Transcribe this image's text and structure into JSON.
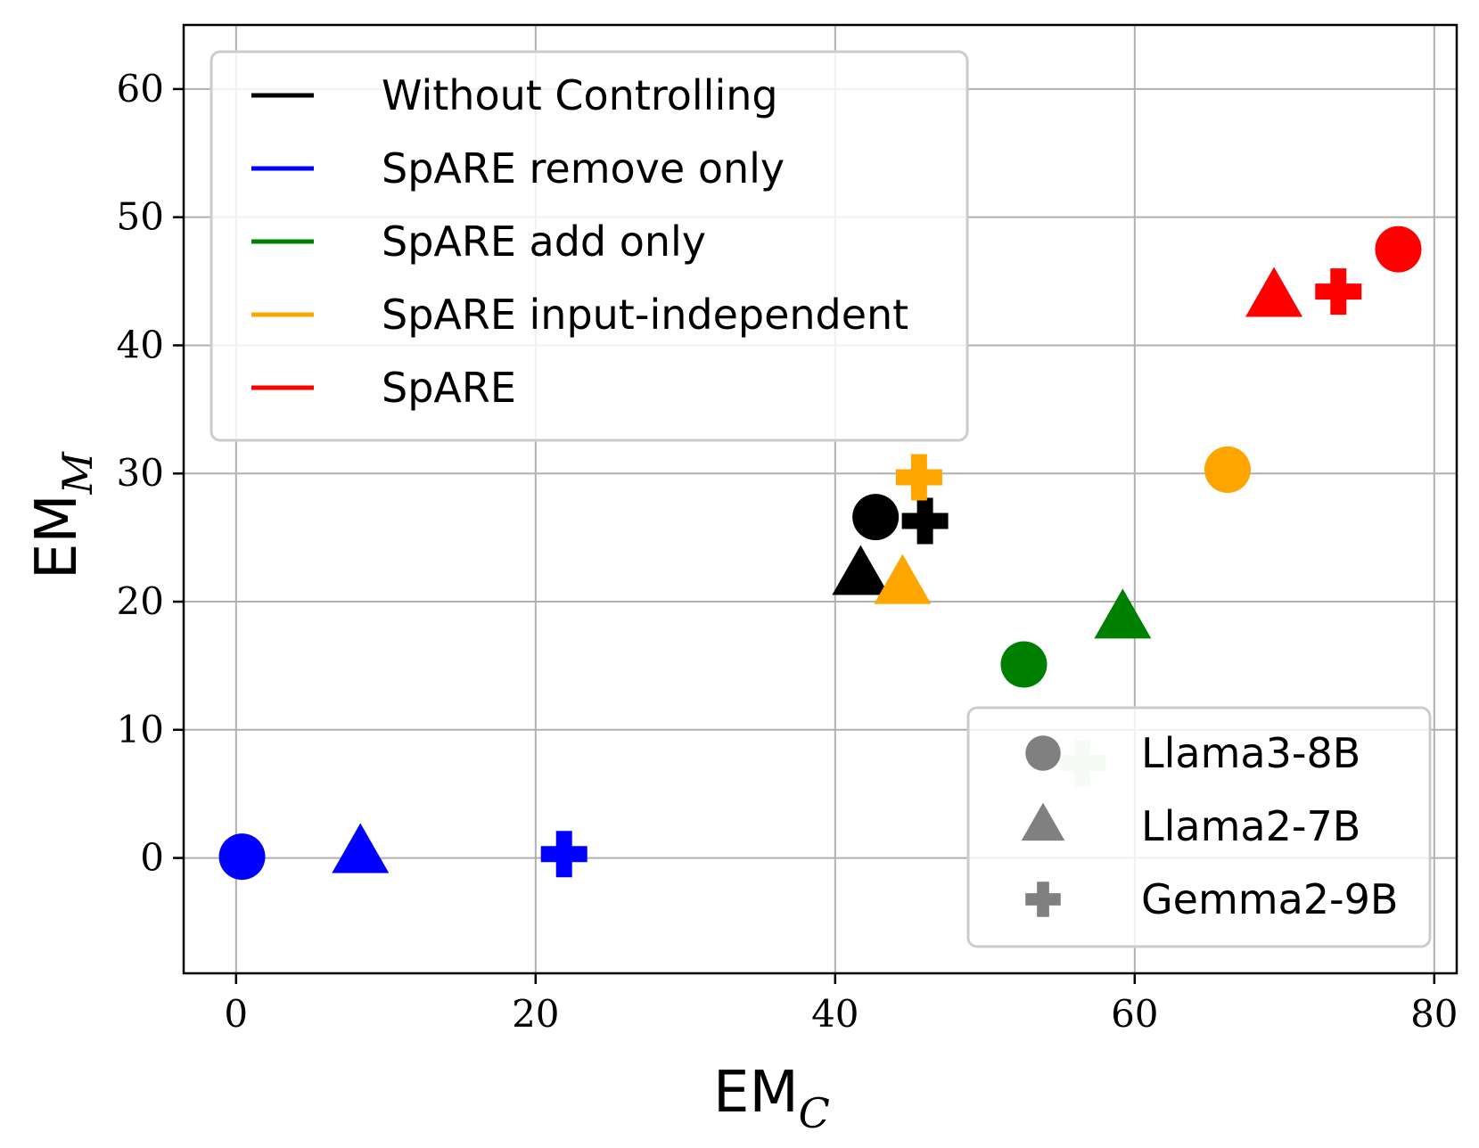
{
  "chart_data": {
    "type": "scatter",
    "xlabel": {
      "main": "EM",
      "sub": "C"
    },
    "ylabel": {
      "main": "EM",
      "sub": "M"
    },
    "xlim": [
      -3.5,
      81.5
    ],
    "ylim": [
      -9,
      65
    ],
    "xticks": [
      0,
      20,
      40,
      60,
      80
    ],
    "yticks": [
      0,
      10,
      20,
      30,
      40,
      50,
      60
    ],
    "grid": true,
    "method_legend": {
      "placement": "top-left",
      "entries": [
        {
          "label": "Without Controlling",
          "color": "#000000"
        },
        {
          "label": "SpARE remove only",
          "color": "#0000ff"
        },
        {
          "label": "SpARE add only",
          "color": "#008000"
        },
        {
          "label": "SpARE input-independent",
          "color": "#ffa500"
        },
        {
          "label": "SpARE",
          "color": "#ff0000"
        }
      ]
    },
    "model_legend": {
      "placement": "bottom-right",
      "color": "#808080",
      "entries": [
        {
          "label": "Llama3-8B",
          "marker": "circle"
        },
        {
          "label": "Llama2-7B",
          "marker": "triangle"
        },
        {
          "label": "Gemma2-9B",
          "marker": "plus"
        }
      ]
    },
    "points": [
      {
        "method": "Without Controlling",
        "model": "Llama3-8B",
        "marker": "circle",
        "color": "#000000",
        "x": 42.7,
        "y": 26.6
      },
      {
        "method": "Without Controlling",
        "model": "Llama2-7B",
        "marker": "triangle",
        "color": "#000000",
        "x": 41.7,
        "y": 22.0
      },
      {
        "method": "Without Controlling",
        "model": "Gemma2-9B",
        "marker": "plus",
        "color": "#000000",
        "x": 46.0,
        "y": 26.3
      },
      {
        "method": "SpARE remove only",
        "model": "Llama3-8B",
        "marker": "circle",
        "color": "#0000ff",
        "x": 0.4,
        "y": 0.1
      },
      {
        "method": "SpARE remove only",
        "model": "Llama2-7B",
        "marker": "triangle",
        "color": "#0000ff",
        "x": 8.3,
        "y": 0.3
      },
      {
        "method": "SpARE remove only",
        "model": "Gemma2-9B",
        "marker": "plus",
        "color": "#0000ff",
        "x": 21.9,
        "y": 0.3
      },
      {
        "method": "SpARE add only",
        "model": "Llama3-8B",
        "marker": "circle",
        "color": "#008000",
        "x": 52.6,
        "y": 15.1
      },
      {
        "method": "SpARE add only",
        "model": "Llama2-7B",
        "marker": "triangle",
        "color": "#008000",
        "x": 59.2,
        "y": 18.6
      },
      {
        "method": "SpARE add only",
        "model": "Gemma2-9B",
        "marker": "plus",
        "color": "#008000",
        "x": 56.5,
        "y": 7.4,
        "faded": true
      },
      {
        "method": "SpARE input-independent",
        "model": "Llama3-8B",
        "marker": "circle",
        "color": "#ffa500",
        "x": 66.2,
        "y": 30.3
      },
      {
        "method": "SpARE input-independent",
        "model": "Llama2-7B",
        "marker": "triangle",
        "color": "#ffa500",
        "x": 44.5,
        "y": 21.3
      },
      {
        "method": "SpARE input-independent",
        "model": "Gemma2-9B",
        "marker": "plus",
        "color": "#ffa500",
        "x": 45.6,
        "y": 29.7
      },
      {
        "method": "SpARE",
        "model": "Llama3-8B",
        "marker": "circle",
        "color": "#ff0000",
        "x": 77.6,
        "y": 47.5
      },
      {
        "method": "SpARE",
        "model": "Llama2-7B",
        "marker": "triangle",
        "color": "#ff0000",
        "x": 69.3,
        "y": 43.7
      },
      {
        "method": "SpARE",
        "model": "Gemma2-9B",
        "marker": "plus",
        "color": "#ff0000",
        "x": 73.6,
        "y": 44.2
      }
    ]
  }
}
